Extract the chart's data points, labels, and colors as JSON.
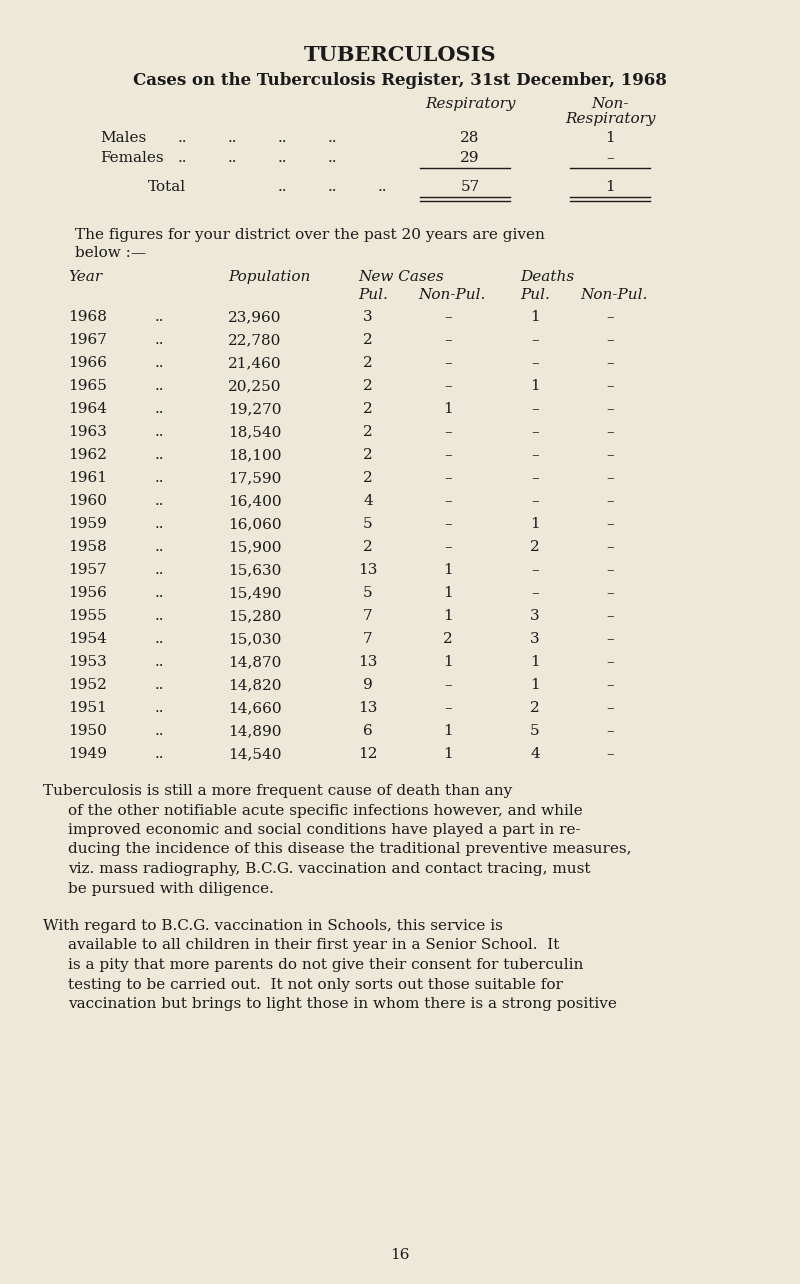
{
  "bg_color": "#ede8d8",
  "text_color": "#1a1a1a",
  "title": "TUBERCULOSIS",
  "subtitle": "Cases on the Tuberculosis Register, 31st December, 1968",
  "col_header_respiratory": "Respiratory",
  "col_header_non_respiratory_line1": "Non-",
  "col_header_non_respiratory_line2": "Respiratory",
  "register_rows": [
    {
      "label": "Males",
      "respiratory": "28",
      "non_respiratory": "1"
    },
    {
      "label": "Females",
      "respiratory": "29",
      "non_respiratory": "–"
    }
  ],
  "register_total_label": "Total",
  "register_total_respiratory": "57",
  "register_total_non_respiratory": "1",
  "intro_text_line1": "The figures for your district over the past 20 years are given",
  "intro_text_line2": "below :—",
  "new_cases_label": "New Cases",
  "deaths_label": "Deaths",
  "table_data": [
    [
      "1968",
      "..",
      "23,960",
      "3",
      "–",
      "1",
      "–"
    ],
    [
      "1967",
      "..",
      "22,780",
      "2",
      "–",
      "–",
      "–"
    ],
    [
      "1966",
      "..",
      "21,460",
      "2",
      "–",
      "–",
      "–"
    ],
    [
      "1965",
      "..",
      "20,250",
      "2",
      "–",
      "1",
      "–"
    ],
    [
      "1964",
      "..",
      "19,270",
      "2",
      "1",
      "–",
      "–"
    ],
    [
      "1963",
      "..",
      "18,540",
      "2",
      "–",
      "–",
      "–"
    ],
    [
      "1962",
      "..",
      "18,100",
      "2",
      "–",
      "–",
      "–"
    ],
    [
      "1961",
      "..",
      "17,590",
      "2",
      "–",
      "–",
      "–"
    ],
    [
      "1960",
      "..",
      "16,400",
      "4",
      "–",
      "–",
      "–"
    ],
    [
      "1959",
      "..",
      "16,060",
      "5",
      "–",
      "1",
      "–"
    ],
    [
      "1958",
      "..",
      "15,900",
      "2",
      "–",
      "2",
      "–"
    ],
    [
      "1957",
      "..",
      "15,630",
      "13",
      "1",
      "–",
      "–"
    ],
    [
      "1956",
      "..",
      "15,490",
      "5",
      "1",
      "–",
      "–"
    ],
    [
      "1955",
      "..",
      "15,280",
      "7",
      "1",
      "3",
      "–"
    ],
    [
      "1954",
      "..",
      "15,030",
      "7",
      "2",
      "3",
      "–"
    ],
    [
      "1953",
      "..",
      "14,870",
      "13",
      "1",
      "1",
      "–"
    ],
    [
      "1952",
      "..",
      "14,820",
      "9",
      "–",
      "1",
      "–"
    ],
    [
      "1951",
      "..",
      "14,660",
      "13",
      "–",
      "2",
      "–"
    ],
    [
      "1950",
      "..",
      "14,890",
      "6",
      "1",
      "5",
      "–"
    ],
    [
      "1949",
      "..",
      "14,540",
      "12",
      "1",
      "4",
      "–"
    ]
  ],
  "para1_lines": [
    "Tuberculosis is still a more frequent cause of death than any",
    "of the other notifiable acute specific infections however, and while",
    "improved economic and social conditions have played a part in re-",
    "ducing the incidence of this disease the traditional preventive measures,",
    "viz. mass radiography, B.C.G. vaccination and contact tracing, must",
    "be pursued with diligence."
  ],
  "para2_lines": [
    "With regard to B.C.G. vaccination in Schools, this service is",
    "available to all children in their first year in a Senior School.  It",
    "is a pity that more parents do not give their consent for tuberculin",
    "testing to be carried out.  It not only sorts out those suitable for",
    "vaccination but brings to light those in whom there is a strong positive"
  ],
  "page_number": "16"
}
